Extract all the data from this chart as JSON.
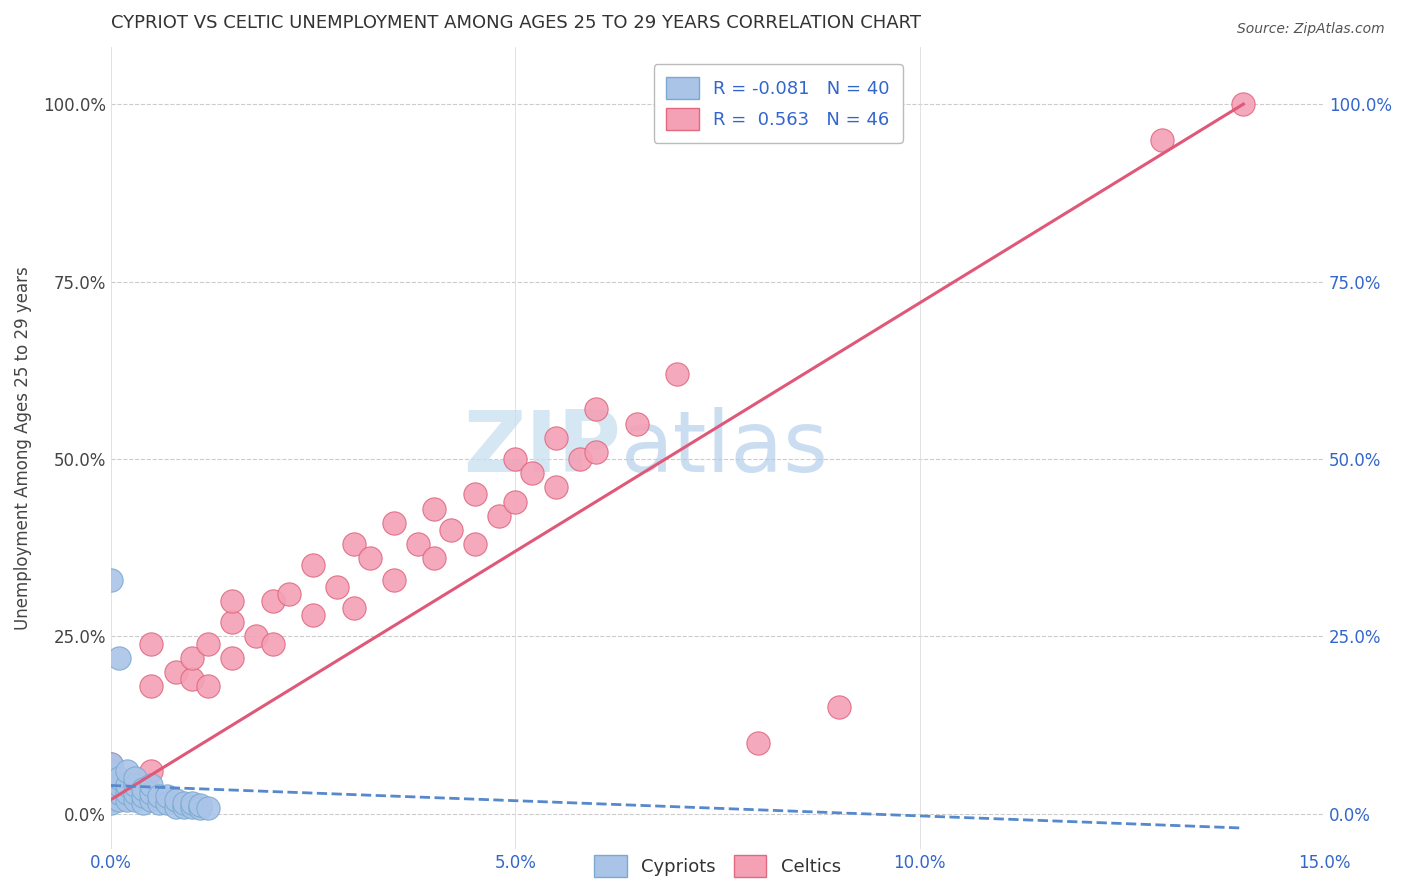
{
  "title": "CYPRIOT VS CELTIC UNEMPLOYMENT AMONG AGES 25 TO 29 YEARS CORRELATION CHART",
  "source": "Source: ZipAtlas.com",
  "ylabel": "Unemployment Among Ages 25 to 29 years",
  "xmin": 0.0,
  "xmax": 0.15,
  "ymin": -0.05,
  "ymax": 1.08,
  "cypriot_color": "#aac4e8",
  "cypriot_edge": "#7aaad0",
  "celtic_color": "#f4a0b5",
  "celtic_edge": "#e06880",
  "cypriot_R": -0.081,
  "cypriot_N": 40,
  "celtic_R": 0.563,
  "celtic_N": 46,
  "watermark_zip": "ZIP",
  "watermark_atlas": "atlas",
  "xticks": [
    0.0,
    0.05,
    0.1,
    0.15
  ],
  "xtick_labels": [
    "0.0%",
    "5.0%",
    "10.0%",
    "15.0%"
  ],
  "yticks": [
    0.0,
    0.25,
    0.5,
    0.75,
    1.0
  ],
  "ytick_labels": [
    "0.0%",
    "25.0%",
    "50.0%",
    "75.0%",
    "100.0%"
  ],
  "cypriot_x": [
    0.0,
    0.0,
    0.0,
    0.0,
    0.0,
    0.0,
    0.0,
    0.001,
    0.001,
    0.001,
    0.001,
    0.002,
    0.002,
    0.002,
    0.002,
    0.003,
    0.003,
    0.003,
    0.003,
    0.004,
    0.004,
    0.004,
    0.005,
    0.005,
    0.005,
    0.006,
    0.006,
    0.007,
    0.007,
    0.008,
    0.008,
    0.009,
    0.009,
    0.01,
    0.01,
    0.011,
    0.011,
    0.012,
    0.0,
    0.001
  ],
  "cypriot_y": [
    0.02,
    0.03,
    0.04,
    0.05,
    0.06,
    0.07,
    0.015,
    0.02,
    0.03,
    0.04,
    0.05,
    0.02,
    0.03,
    0.04,
    0.06,
    0.02,
    0.03,
    0.04,
    0.05,
    0.015,
    0.025,
    0.035,
    0.02,
    0.03,
    0.04,
    0.015,
    0.025,
    0.015,
    0.025,
    0.01,
    0.02,
    0.01,
    0.015,
    0.01,
    0.015,
    0.008,
    0.012,
    0.008,
    0.33,
    0.22
  ],
  "celtic_x": [
    0.0,
    0.0,
    0.005,
    0.005,
    0.005,
    0.008,
    0.01,
    0.01,
    0.012,
    0.012,
    0.015,
    0.015,
    0.015,
    0.018,
    0.02,
    0.02,
    0.022,
    0.025,
    0.025,
    0.028,
    0.03,
    0.03,
    0.032,
    0.035,
    0.035,
    0.038,
    0.04,
    0.04,
    0.042,
    0.045,
    0.045,
    0.048,
    0.05,
    0.05,
    0.052,
    0.055,
    0.055,
    0.058,
    0.06,
    0.06,
    0.065,
    0.07,
    0.08,
    0.09,
    0.13,
    0.14
  ],
  "celtic_y": [
    0.04,
    0.07,
    0.06,
    0.18,
    0.24,
    0.2,
    0.19,
    0.22,
    0.18,
    0.24,
    0.22,
    0.27,
    0.3,
    0.25,
    0.24,
    0.3,
    0.31,
    0.28,
    0.35,
    0.32,
    0.29,
    0.38,
    0.36,
    0.33,
    0.41,
    0.38,
    0.36,
    0.43,
    0.4,
    0.38,
    0.45,
    0.42,
    0.44,
    0.5,
    0.48,
    0.46,
    0.53,
    0.5,
    0.51,
    0.57,
    0.55,
    0.62,
    0.1,
    0.15,
    0.95,
    1.0
  ],
  "celtic_line_x": [
    0.0,
    0.14
  ],
  "celtic_line_y": [
    0.02,
    1.0
  ],
  "cypriot_line_x": [
    0.0,
    0.14
  ],
  "cypriot_line_y": [
    0.04,
    -0.02
  ]
}
